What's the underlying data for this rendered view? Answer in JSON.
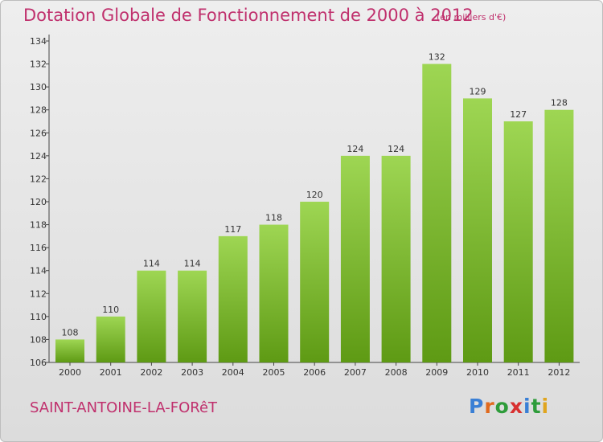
{
  "header": {
    "title": "Dotation Globale de Fonctionnement de 2000 à 2012",
    "subtitle": "(en milliers d'€)"
  },
  "footer": {
    "commune": "SAINT-ANTOINE-LA-FORêT",
    "logo_letters": [
      "P",
      "r",
      "o",
      "x",
      "i",
      "t",
      "i"
    ],
    "logo_colors": [
      "#3a7fd5",
      "#e06a1e",
      "#2e9c3a",
      "#d83030",
      "#3a7fd5",
      "#2e9c3a",
      "#e0a51e"
    ]
  },
  "colors": {
    "title": "#c0306d",
    "bar_light": "#9ed653",
    "bar_dark": "#5e9a14",
    "axis": "#444444"
  },
  "chart_data": {
    "type": "bar",
    "categories": [
      "2000",
      "2001",
      "2002",
      "2003",
      "2004",
      "2005",
      "2006",
      "2007",
      "2008",
      "2009",
      "2010",
      "2011",
      "2012"
    ],
    "values": [
      108,
      110,
      114,
      114,
      117,
      118,
      120,
      124,
      124,
      132,
      129,
      127,
      128
    ],
    "ylim": [
      106,
      134
    ],
    "yticks": [
      106,
      108,
      110,
      112,
      114,
      116,
      118,
      120,
      122,
      124,
      126,
      128,
      130,
      132,
      134
    ],
    "grid": false,
    "data_labels": true
  }
}
